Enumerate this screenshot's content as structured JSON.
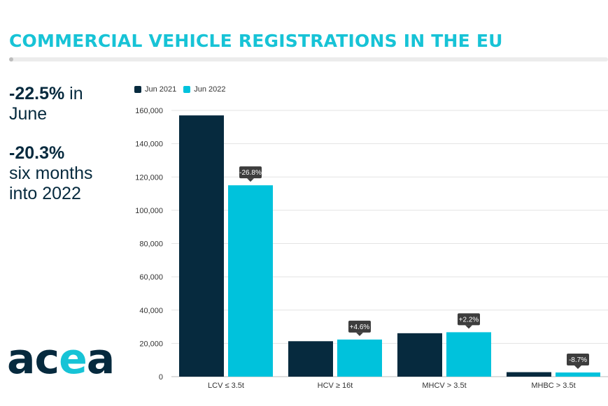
{
  "title": "COMMERCIAL VEHICLE REGISTRATIONS IN THE EU",
  "stats": {
    "june_change": "-22.5%",
    "june_suffix": " in",
    "june_label": "June",
    "ytd_change": "-20.3%",
    "ytd_line1": "six months",
    "ytd_line2": "into 2022"
  },
  "logo": {
    "text": "acea"
  },
  "colors": {
    "title": "#17c3d6",
    "jun_2021": "#062a3e",
    "jun_2022": "#00c2dc",
    "change_label_bg": "#3d3d3d"
  },
  "chart_data": {
    "type": "bar",
    "categories": [
      "LCV ≤ 3.5t",
      "HCV ≥ 16t",
      "MHCV > 3.5t",
      "MHBC > 3.5t"
    ],
    "series": [
      {
        "name": "Jun 2021",
        "values": [
          157000,
          21300,
          26100,
          2700
        ]
      },
      {
        "name": "Jun 2022",
        "values": [
          115000,
          22300,
          26700,
          2500
        ]
      }
    ],
    "change_labels": [
      "-26.8%",
      "+4.6%",
      "+2.2%",
      "-8.7%"
    ],
    "y_ticks": [
      "0",
      "20,000",
      "40,000",
      "60,000",
      "80,000",
      "100,000",
      "120,000",
      "140,000",
      "160,000"
    ],
    "ylim": [
      0,
      160000
    ],
    "grid": true,
    "legend_position": "top-left"
  }
}
